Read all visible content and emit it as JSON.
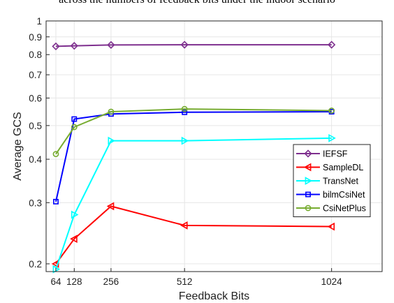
{
  "header_text": "across the numbers of feedback bits under the indoor scenario",
  "chart_data": {
    "type": "line",
    "xlabel": "Feedback Bits",
    "ylabel": "Average GCS",
    "y_scale": "log",
    "xlim": [
      30,
      1200
    ],
    "ylim": [
      0.19,
      1.0
    ],
    "grid": true,
    "legend_position": "center-right",
    "x": [
      64,
      128,
      256,
      512,
      1024
    ],
    "x_ticks": [
      "64",
      "128",
      "256",
      "512",
      "1024"
    ],
    "y_ticks": [
      "0.2",
      "0.3",
      "0.4",
      "0.5",
      "0.6",
      "0.7",
      "0.8",
      "0.9",
      "1"
    ],
    "series": [
      {
        "name": "IEFSF",
        "color": "#7e2f8e",
        "marker": "diamond",
        "values": [
          0.845,
          0.848,
          0.853,
          0.854,
          0.854
        ]
      },
      {
        "name": "SampleDL",
        "color": "#ff0000",
        "marker": "triangle-left",
        "values": [
          0.2,
          0.236,
          0.293,
          0.258,
          0.256
        ]
      },
      {
        "name": "TransNet",
        "color": "#00ffff",
        "marker": "triangle-right",
        "values": [
          0.193,
          0.277,
          0.452,
          0.452,
          0.46
        ]
      },
      {
        "name": "bilmCsiNet",
        "color": "#0000ff",
        "marker": "square",
        "values": [
          0.302,
          0.522,
          0.54,
          0.546,
          0.548
        ]
      },
      {
        "name": "CsiNetPlus",
        "color": "#77ac30",
        "marker": "circle",
        "values": [
          0.414,
          0.495,
          0.548,
          0.558,
          0.552
        ]
      }
    ]
  }
}
